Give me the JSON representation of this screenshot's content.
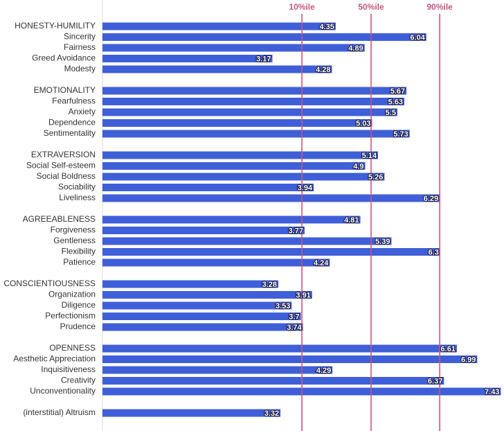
{
  "chart_data": {
    "type": "bar",
    "orientation": "horizontal",
    "categories": [
      "HONESTY-HUMILITY",
      "Sincerity",
      "Fairness",
      "Greed Avoidance",
      "Modesty",
      null,
      "EMOTIONALITY",
      "Fearfulness",
      "Anxiety",
      "Dependence",
      "Sentimentality",
      null,
      "EXTRAVERSION",
      "Social Self-esteem",
      "Social Boldness",
      "Sociability",
      "Liveliness",
      null,
      "AGREEABLENESS",
      "Forgiveness",
      "Gentleness",
      "Flexibility",
      "Patience",
      null,
      "CONSCIENTIOUSNESS",
      "Organization",
      "Diligence",
      "Perfectionism",
      "Prudence",
      null,
      "OPENNESS",
      "Aesthetic Appreciation",
      "Inquisitiveness",
      "Creativity",
      "Unconventionality",
      null,
      "(interstitial) Altruism"
    ],
    "values": [
      4.35,
      6.04,
      4.89,
      3.17,
      4.28,
      null,
      5.67,
      5.63,
      5.5,
      5.03,
      5.73,
      null,
      5.14,
      4.9,
      5.26,
      3.94,
      6.29,
      null,
      4.81,
      3.77,
      5.39,
      6.3,
      4.24,
      null,
      3.28,
      3.91,
      3.53,
      3.7,
      3.74,
      null,
      6.61,
      6.99,
      4.29,
      6.37,
      7.43,
      null,
      3.32
    ],
    "color": "#3f5fd8",
    "xlim": [
      0,
      7.45
    ],
    "reference_lines": [
      {
        "value": 3.72,
        "label": "10%ile"
      },
      {
        "value": 5.01,
        "label": "50%ile"
      },
      {
        "value": 6.29,
        "label": "90%ile"
      }
    ],
    "reference_color": "#c9577a"
  }
}
